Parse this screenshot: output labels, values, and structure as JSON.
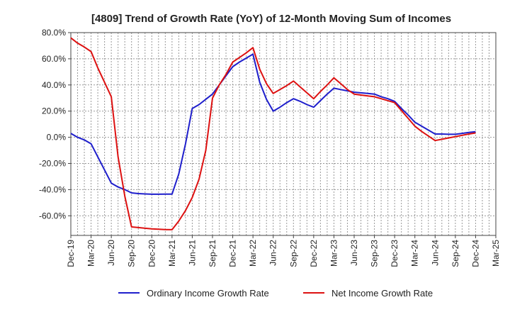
{
  "chart_data": {
    "type": "line",
    "title": "[4809]  Trend of Growth Rate (YoY) of 12-Month Moving Sum of Incomes",
    "xlabel": "",
    "ylabel": "",
    "ylim": [
      -75,
      80
    ],
    "y_ticks": [
      80,
      60,
      40,
      20,
      0,
      -20,
      -40,
      -60
    ],
    "y_tick_labels": [
      "80.0%",
      "60.0%",
      "40.0%",
      "20.0%",
      "0.0%",
      "-20.0%",
      "-40.0%",
      "-60.0%"
    ],
    "x_tick_labels": [
      "Dec-19",
      "Mar-20",
      "Jun-20",
      "Sep-20",
      "Dec-20",
      "Mar-21",
      "Jun-21",
      "Sep-21",
      "Dec-21",
      "Mar-22",
      "Jun-22",
      "Sep-22",
      "Dec-22",
      "Mar-23",
      "Jun-23",
      "Sep-23",
      "Dec-23",
      "Mar-24",
      "Jun-24",
      "Sep-24",
      "Dec-24",
      "Mar-25"
    ],
    "grid": true,
    "legend_position": "bottom",
    "series": [
      {
        "name": "Ordinary Income Growth Rate",
        "color": "#1f1fcc",
        "values": [
          [
            "2019-12",
            3
          ],
          [
            "2020-01",
            0
          ],
          [
            "2020-02",
            -2
          ],
          [
            "2020-03",
            -5
          ],
          [
            "2020-04",
            -15
          ],
          [
            "2020-05",
            -25
          ],
          [
            "2020-06",
            -35
          ],
          [
            "2020-07",
            -38
          ],
          [
            "2020-08",
            -40
          ],
          [
            "2020-09",
            -42.5
          ],
          [
            "2020-10",
            -43
          ],
          [
            "2020-11",
            -43.3
          ],
          [
            "2020-12",
            -43.5
          ],
          [
            "2021-01",
            -43.5
          ],
          [
            "2021-02",
            -43.4
          ],
          [
            "2021-03",
            -43.4
          ],
          [
            "2021-04",
            -28
          ],
          [
            "2021-05",
            -5
          ],
          [
            "2021-06",
            22
          ],
          [
            "2021-07",
            25
          ],
          [
            "2021-08",
            29
          ],
          [
            "2021-09",
            33
          ],
          [
            "2021-10",
            40
          ],
          [
            "2021-11",
            47
          ],
          [
            "2021-12",
            54
          ],
          [
            "2022-01",
            57.5
          ],
          [
            "2022-02",
            60.5
          ],
          [
            "2022-03",
            63.5
          ],
          [
            "2022-04",
            42
          ],
          [
            "2022-05",
            29
          ],
          [
            "2022-06",
            20
          ],
          [
            "2022-07",
            23
          ],
          [
            "2022-08",
            26.5
          ],
          [
            "2022-09",
            29.5
          ],
          [
            "2022-10",
            27.5
          ],
          [
            "2022-11",
            25
          ],
          [
            "2022-12",
            23
          ],
          [
            "2023-01",
            28
          ],
          [
            "2023-02",
            33
          ],
          [
            "2023-03",
            37.5
          ],
          [
            "2023-04",
            36.5
          ],
          [
            "2023-05",
            35.5
          ],
          [
            "2023-06",
            34.5
          ],
          [
            "2023-07",
            34
          ],
          [
            "2023-08",
            33.5
          ],
          [
            "2023-09",
            33
          ],
          [
            "2023-10",
            31
          ],
          [
            "2023-11",
            29.5
          ],
          [
            "2023-12",
            27.5
          ],
          [
            "2024-01",
            22
          ],
          [
            "2024-02",
            17
          ],
          [
            "2024-03",
            11.5
          ],
          [
            "2024-04",
            8.5
          ],
          [
            "2024-05",
            5.5
          ],
          [
            "2024-06",
            2.5
          ],
          [
            "2024-07",
            2.5
          ],
          [
            "2024-08",
            2.3
          ],
          [
            "2024-09",
            2.3
          ],
          [
            "2024-10",
            3
          ],
          [
            "2024-11",
            3.7
          ],
          [
            "2024-12",
            4.3
          ]
        ]
      },
      {
        "name": "Net Income Growth Rate",
        "color": "#dd1111",
        "values": [
          [
            "2019-12",
            76
          ],
          [
            "2020-01",
            72
          ],
          [
            "2020-02",
            69
          ],
          [
            "2020-03",
            65.5
          ],
          [
            "2020-04",
            53
          ],
          [
            "2020-05",
            42
          ],
          [
            "2020-06",
            31
          ],
          [
            "2020-07",
            -15
          ],
          [
            "2020-08",
            -45
          ],
          [
            "2020-09",
            -68.5
          ],
          [
            "2020-10",
            -69
          ],
          [
            "2020-11",
            -69.5
          ],
          [
            "2020-12",
            -70
          ],
          [
            "2021-01",
            -70.3
          ],
          [
            "2021-02",
            -70.5
          ],
          [
            "2021-03",
            -70.6
          ],
          [
            "2021-04",
            -64
          ],
          [
            "2021-05",
            -56
          ],
          [
            "2021-06",
            -46
          ],
          [
            "2021-07",
            -32
          ],
          [
            "2021-08",
            -10
          ],
          [
            "2021-09",
            30
          ],
          [
            "2021-10",
            40
          ],
          [
            "2021-11",
            48
          ],
          [
            "2021-12",
            57.5
          ],
          [
            "2022-01",
            61
          ],
          [
            "2022-02",
            64.5
          ],
          [
            "2022-03",
            68.5
          ],
          [
            "2022-04",
            52
          ],
          [
            "2022-05",
            41
          ],
          [
            "2022-06",
            33.5
          ],
          [
            "2022-07",
            36.5
          ],
          [
            "2022-08",
            39.5
          ],
          [
            "2022-09",
            43
          ],
          [
            "2022-10",
            38.5
          ],
          [
            "2022-11",
            34
          ],
          [
            "2022-12",
            29.5
          ],
          [
            "2023-01",
            35
          ],
          [
            "2023-02",
            40
          ],
          [
            "2023-03",
            45.5
          ],
          [
            "2023-04",
            41
          ],
          [
            "2023-05",
            36.5
          ],
          [
            "2023-06",
            33
          ],
          [
            "2023-07",
            32.3
          ],
          [
            "2023-08",
            31.6
          ],
          [
            "2023-09",
            31
          ],
          [
            "2023-10",
            29.5
          ],
          [
            "2023-11",
            28
          ],
          [
            "2023-12",
            26.5
          ],
          [
            "2024-01",
            20.5
          ],
          [
            "2024-02",
            14.5
          ],
          [
            "2024-03",
            8.5
          ],
          [
            "2024-04",
            4.5
          ],
          [
            "2024-05",
            1
          ],
          [
            "2024-06",
            -2.5
          ],
          [
            "2024-07",
            -1.5
          ],
          [
            "2024-08",
            -0.5
          ],
          [
            "2024-09",
            0.5
          ],
          [
            "2024-10",
            1.5
          ],
          [
            "2024-11",
            2.5
          ],
          [
            "2024-12",
            3.3
          ]
        ]
      }
    ]
  }
}
